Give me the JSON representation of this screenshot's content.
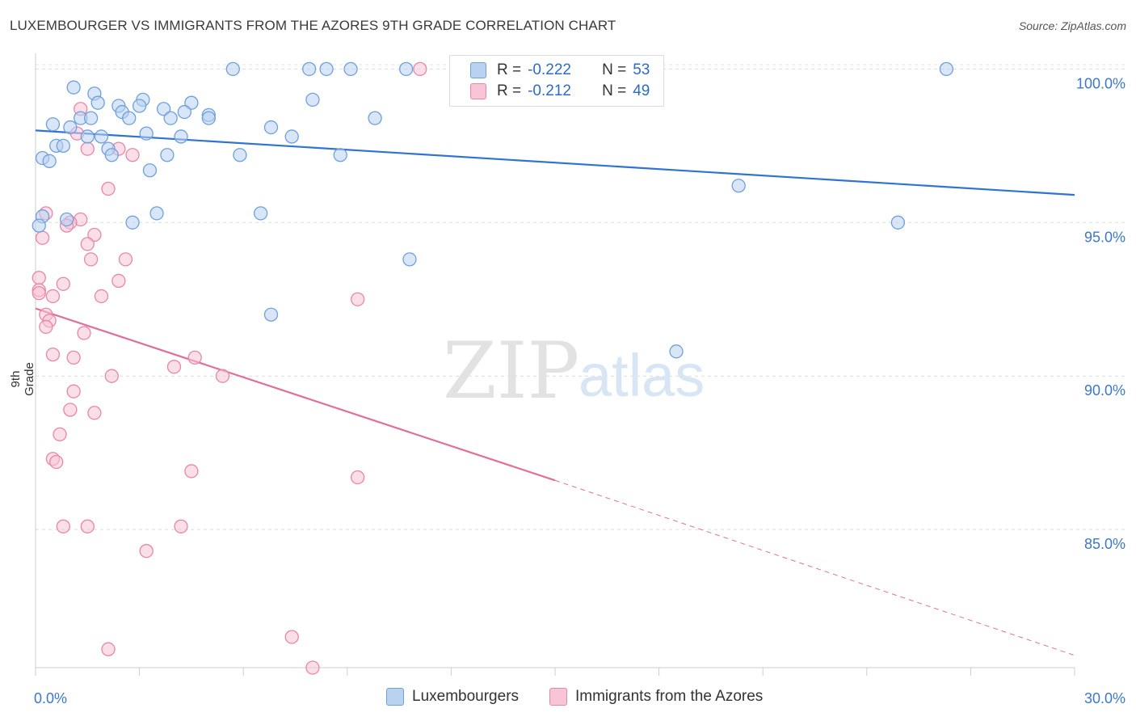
{
  "title": "LUXEMBOURGER VS IMMIGRANTS FROM THE AZORES 9TH GRADE CORRELATION CHART",
  "source": "Source: ZipAtlas.com",
  "watermark": {
    "zip": "ZIP",
    "atlas": "atlas"
  },
  "colors": {
    "blue": "#6fa0dc",
    "blue_fill": "#b8d2f0",
    "blue_line": "#2f74d0",
    "pink": "#e886a8",
    "pink_fill": "#f8c5d6",
    "pink_line": "#e0709a",
    "tick_text": "#3a78c8"
  },
  "legend": {
    "rows": [
      {
        "r_label": "R =",
        "r_value": "-0.222",
        "n_label": "N =",
        "n_value": "53"
      },
      {
        "r_label": "R =",
        "r_value": "-0.212",
        "n_label": "N =",
        "n_value": "49"
      }
    ]
  },
  "bottom_legend": [
    "Luxembourgers",
    "Immigrants from the Azores"
  ],
  "chart_data": {
    "type": "scatter",
    "title": "LUXEMBOURGER VS IMMIGRANTS FROM THE AZORES 9TH GRADE CORRELATION CHART",
    "xlabel": "",
    "ylabel": "9th Grade",
    "xlim": [
      0,
      30
    ],
    "ylim": [
      80.5,
      100.3
    ],
    "x_tick_labels": [
      "0.0%",
      "30.0%"
    ],
    "y_ticks": [
      85,
      90,
      95,
      100
    ],
    "y_tick_labels": [
      "85.0%",
      "90.0%",
      "95.0%",
      "100.0%"
    ],
    "series": [
      {
        "name": "Luxembourgers",
        "points": [
          [
            5.7,
            100
          ],
          [
            7.9,
            100
          ],
          [
            8.4,
            100
          ],
          [
            9.1,
            100
          ],
          [
            10.7,
            100
          ],
          [
            26.3,
            100
          ],
          [
            1.1,
            99.4
          ],
          [
            1.7,
            99.2
          ],
          [
            3.1,
            99
          ],
          [
            4.5,
            98.9
          ],
          [
            8.0,
            99
          ],
          [
            1.8,
            98.9
          ],
          [
            2.4,
            98.8
          ],
          [
            3.7,
            98.7
          ],
          [
            4.3,
            98.6
          ],
          [
            2.5,
            98.6
          ],
          [
            5.0,
            98.5
          ],
          [
            1.3,
            98.4
          ],
          [
            1.6,
            98.4
          ],
          [
            2.7,
            98.4
          ],
          [
            3.9,
            98.4
          ],
          [
            5.0,
            98.4
          ],
          [
            9.8,
            98.4
          ],
          [
            0.5,
            98.2
          ],
          [
            1.0,
            98.1
          ],
          [
            6.8,
            98.1
          ],
          [
            3.2,
            97.9
          ],
          [
            1.5,
            97.8
          ],
          [
            1.9,
            97.8
          ],
          [
            4.2,
            97.8
          ],
          [
            7.4,
            97.8
          ],
          [
            0.6,
            97.5
          ],
          [
            0.8,
            97.5
          ],
          [
            2.1,
            97.4
          ],
          [
            2.2,
            97.2
          ],
          [
            3.8,
            97.2
          ],
          [
            5.9,
            97.2
          ],
          [
            8.8,
            97.2
          ],
          [
            0.2,
            97.1
          ],
          [
            0.4,
            97.0
          ],
          [
            3.3,
            96.7
          ],
          [
            20.3,
            96.2
          ],
          [
            3.5,
            95.3
          ],
          [
            6.5,
            95.3
          ],
          [
            0.2,
            95.2
          ],
          [
            0.9,
            95.1
          ],
          [
            2.8,
            95.0
          ],
          [
            24.9,
            95.0
          ],
          [
            10.8,
            93.8
          ],
          [
            6.8,
            92.0
          ],
          [
            0.1,
            94.9
          ],
          [
            18.5,
            90.8
          ],
          [
            3.0,
            98.8
          ]
        ]
      },
      {
        "name": "Immigrants from the Azores",
        "points": [
          [
            11.1,
            100
          ],
          [
            1.3,
            98.7
          ],
          [
            1.2,
            97.9
          ],
          [
            1.5,
            97.4
          ],
          [
            2.4,
            97.4
          ],
          [
            2.8,
            97.2
          ],
          [
            2.1,
            96.1
          ],
          [
            0.3,
            95.3
          ],
          [
            1.3,
            95.1
          ],
          [
            1.0,
            95.0
          ],
          [
            0.9,
            94.9
          ],
          [
            1.7,
            94.6
          ],
          [
            0.2,
            94.5
          ],
          [
            1.5,
            94.3
          ],
          [
            1.6,
            93.8
          ],
          [
            2.6,
            93.8
          ],
          [
            0.1,
            93.2
          ],
          [
            2.4,
            93.1
          ],
          [
            0.8,
            93.0
          ],
          [
            0.1,
            92.8
          ],
          [
            0.5,
            92.6
          ],
          [
            1.9,
            92.6
          ],
          [
            9.3,
            92.5
          ],
          [
            0.3,
            92.0
          ],
          [
            0.4,
            91.8
          ],
          [
            0.3,
            91.6
          ],
          [
            1.4,
            91.4
          ],
          [
            0.5,
            90.7
          ],
          [
            1.1,
            90.6
          ],
          [
            4.6,
            90.6
          ],
          [
            4.0,
            90.3
          ],
          [
            2.2,
            90.0
          ],
          [
            5.4,
            90.0
          ],
          [
            1.1,
            89.5
          ],
          [
            1.0,
            88.9
          ],
          [
            1.7,
            88.8
          ],
          [
            0.7,
            88.1
          ],
          [
            0.5,
            87.3
          ],
          [
            0.6,
            87.2
          ],
          [
            4.5,
            86.9
          ],
          [
            9.3,
            86.7
          ],
          [
            0.8,
            85.1
          ],
          [
            1.5,
            85.1
          ],
          [
            4.2,
            85.1
          ],
          [
            3.2,
            84.3
          ],
          [
            7.4,
            81.5
          ],
          [
            2.1,
            81.1
          ],
          [
            8.0,
            80.5
          ],
          [
            0.1,
            92.7
          ]
        ]
      }
    ],
    "trend_lines": [
      {
        "series": "Luxembourgers",
        "x": [
          0,
          30
        ],
        "y": [
          98.0,
          95.9
        ],
        "style": "solid"
      },
      {
        "series": "Immigrants from the Azores",
        "x": [
          0,
          15
        ],
        "y": [
          92.2,
          86.6
        ],
        "style": "solid"
      },
      {
        "series": "Immigrants from the Azores",
        "x": [
          15,
          30
        ],
        "y": [
          86.6,
          80.9
        ],
        "style": "dashed"
      }
    ]
  }
}
